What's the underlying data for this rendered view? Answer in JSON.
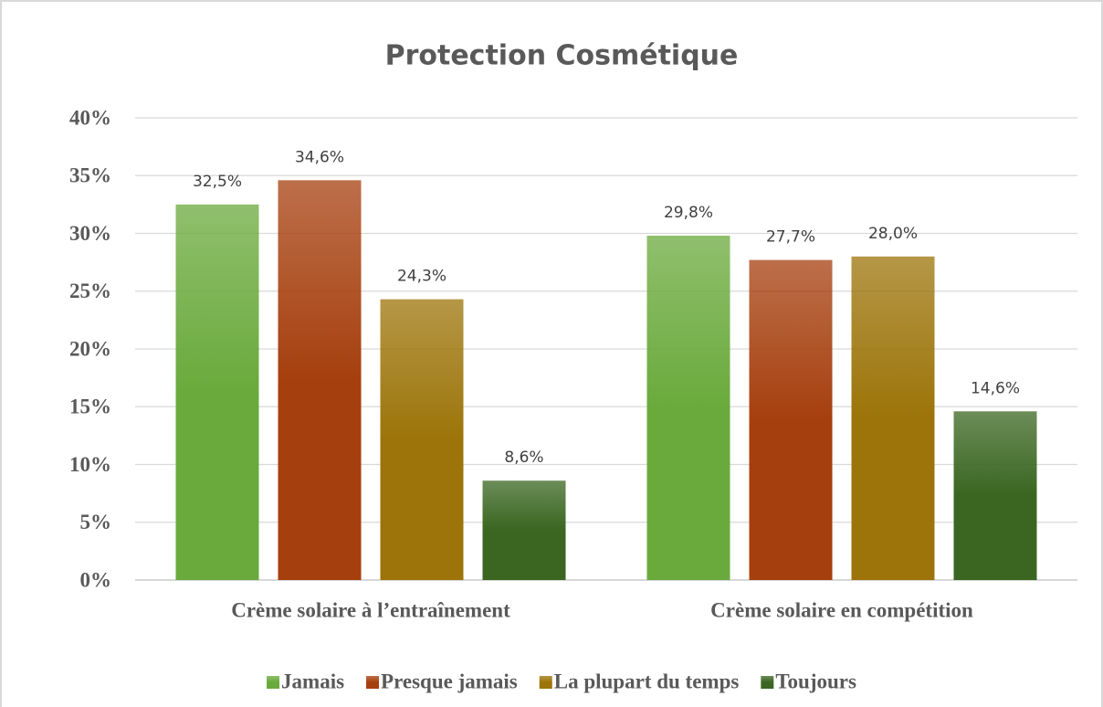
{
  "chart_data": {
    "type": "bar",
    "title": "Protection Cosmétique",
    "categories": [
      "Crème solaire à l’entraînement",
      "Crème solaire en compétition"
    ],
    "series": [
      {
        "name": "Jamais",
        "color": "#6aaa3c",
        "values": [
          32.5,
          29.8
        ],
        "value_labels": [
          "32,5%",
          "29,8%"
        ]
      },
      {
        "name": "Presque jamais",
        "color": "#a63f0e",
        "values": [
          34.6,
          27.7
        ],
        "value_labels": [
          "34,6%",
          "27,7%"
        ]
      },
      {
        "name": "La plupart du temps",
        "color": "#9c7409",
        "values": [
          24.3,
          28.0
        ],
        "value_labels": [
          "24,3%",
          "28,0%"
        ]
      },
      {
        "name": "Toujours",
        "color": "#3a6621",
        "values": [
          8.6,
          14.6
        ],
        "value_labels": [
          "8,6%",
          "14,6%"
        ]
      }
    ],
    "ylim": [
      0,
      40
    ],
    "yticks": [
      {
        "value": 0,
        "label": "0%"
      },
      {
        "value": 5,
        "label": "5%"
      },
      {
        "value": 10,
        "label": "10%"
      },
      {
        "value": 15,
        "label": "15%"
      },
      {
        "value": 20,
        "label": "20%"
      },
      {
        "value": 25,
        "label": "25%"
      },
      {
        "value": 30,
        "label": "30%"
      },
      {
        "value": 35,
        "label": "35%"
      },
      {
        "value": 40,
        "label": "40%"
      }
    ],
    "grid": true,
    "legend": "bottom"
  }
}
